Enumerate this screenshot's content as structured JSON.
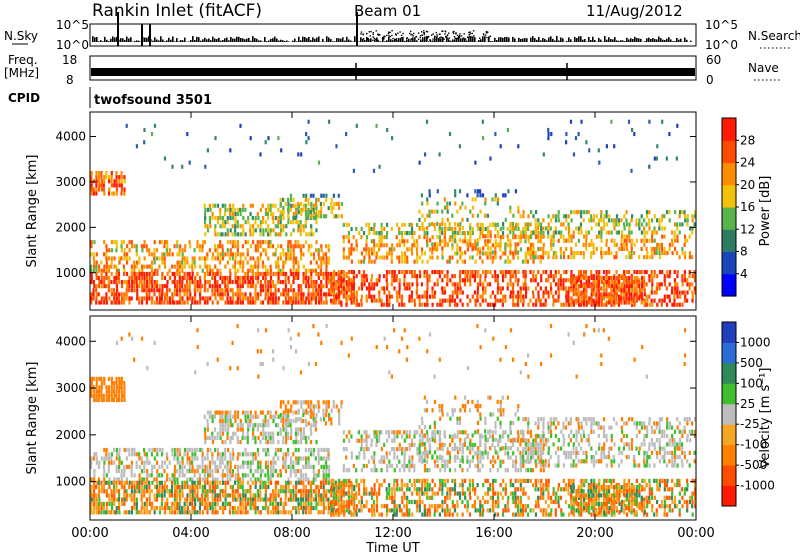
{
  "header": {
    "site": "Rankin Inlet (fitACF)",
    "beam": "Beam 01",
    "date": "11/Aug/2012"
  },
  "panels": {
    "nsky_label": "N.Sky",
    "nsearch_label": "N.Search",
    "nsky_ticks": [
      "10^5",
      "10^0"
    ],
    "nsearch_ticks": [
      "10^5",
      "10^0"
    ],
    "freq_label": "Freq.",
    "freq_unit": "[MHz]",
    "freq_ticks": [
      "18",
      "8"
    ],
    "nave_label": "Nave",
    "nave_ticks": [
      "60",
      "0"
    ],
    "cpid_label": "CPID",
    "cpid_text": "twofsound 3501"
  },
  "chart_data": [
    {
      "type": "heatmap",
      "name": "power",
      "xlabel": "Time UT",
      "ylabel": "Slant Range [km]",
      "x_ticks": [
        "00:00",
        "04:00",
        "08:00",
        "12:00",
        "16:00",
        "20:00",
        "00:00"
      ],
      "xlim_hours": [
        0,
        24
      ],
      "y_ticks": [
        1000,
        2000,
        3000,
        4000
      ],
      "ylim": [
        180,
        4540
      ],
      "colorbar_label": "Power [dB]",
      "colorbar_ticks": [
        "28",
        "24",
        "20",
        "16",
        "12",
        "8",
        "4"
      ],
      "colorbar_colors": [
        "#0000ff",
        "#1a44bb",
        "#2f7a62",
        "#58b34b",
        "#f2c10c",
        "#ff8c00",
        "#ff4a00",
        "#ff1a00"
      ]
    },
    {
      "type": "heatmap",
      "name": "velocity",
      "xlabel": "Time UT",
      "ylabel": "Slant Range [km]",
      "x_ticks": [
        "00:00",
        "04:00",
        "08:00",
        "12:00",
        "16:00",
        "20:00",
        "00:00"
      ],
      "xlim_hours": [
        0,
        24
      ],
      "y_ticks": [
        1000,
        2000,
        3000,
        4000
      ],
      "ylim": [
        180,
        4540
      ],
      "colorbar_label": "Velocity [m s⁻¹]",
      "colorbar_ticks": [
        "1000",
        "500",
        "100",
        "25",
        "-25",
        "-100",
        "-500",
        "-1000"
      ],
      "colorbar_colors": [
        "#ff1a00",
        "#ff4c00",
        "#ff7f00",
        "#f5a623",
        "#bdbdbd",
        "#3fbf2f",
        "#2e8b57",
        "#2a6dd4",
        "#1f3fbf"
      ]
    }
  ],
  "palettes": {
    "power": [
      "#1f3fbf",
      "#2a5fb0",
      "#2f8a62",
      "#58b34b",
      "#f2c10c",
      "#ff8c00",
      "#ff5a00",
      "#ff1a00"
    ],
    "velocity": [
      "#ff1a00",
      "#ff5a00",
      "#ff7f00",
      "#f5a623",
      "#bdbdbd",
      "#3fbf2f",
      "#2e8b57",
      "#2a6dd4"
    ]
  }
}
